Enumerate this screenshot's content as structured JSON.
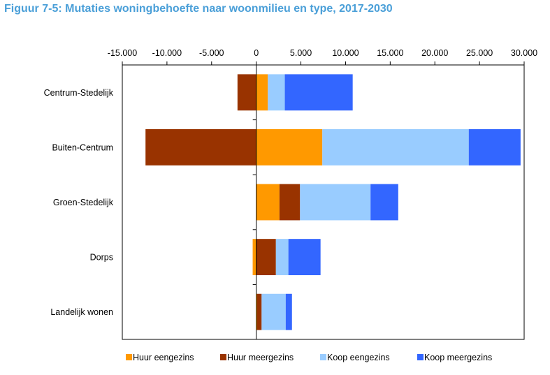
{
  "title": "Figuur 7-5: Mutaties woningbehoefte naar woonmilieu en type, 2017-2030",
  "chart_data": {
    "type": "bar",
    "orientation": "horizontal",
    "stacked": true,
    "categories": [
      "Centrum-Stedelijk",
      "Buiten-Centrum",
      "Groen-Stedelijk",
      "Dorps",
      "Landelijk wonen"
    ],
    "series": [
      {
        "name": "Huur eengezins",
        "color": "#ff9900",
        "values": [
          1300,
          7400,
          2600,
          -400,
          100
        ]
      },
      {
        "name": "Huur meergezins",
        "color": "#993300",
        "values": [
          -2100,
          -12400,
          2300,
          2200,
          500
        ]
      },
      {
        "name": "Koop eengezins",
        "color": "#99ccff",
        "values": [
          1900,
          16400,
          7900,
          1400,
          2700
        ]
      },
      {
        "name": "Koop meergezins",
        "color": "#3366ff",
        "values": [
          7600,
          5800,
          3100,
          3600,
          700
        ]
      }
    ],
    "xlim": [
      -15000,
      30000
    ],
    "xticks": [
      -15000,
      -10000,
      -5000,
      0,
      5000,
      10000,
      15000,
      20000,
      25000,
      30000
    ],
    "xtick_labels": [
      "-15.000",
      "-10.000",
      "-5.000",
      "0",
      "5.000",
      "10.000",
      "15.000",
      "20.000",
      "25.000",
      "30.000"
    ],
    "axis_position": "top",
    "grid": false,
    "legend_position": "bottom"
  }
}
